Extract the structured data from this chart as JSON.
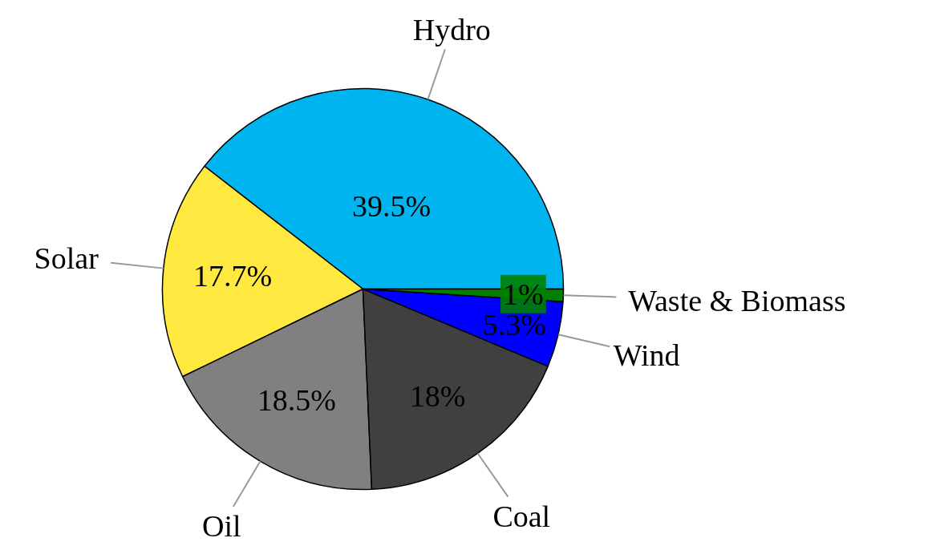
{
  "chart_data": {
    "type": "pie",
    "categories": [
      "Hydro",
      "Solar",
      "Oil",
      "Coal",
      "Wind",
      "Waste & Biomass"
    ],
    "values": [
      39.5,
      17.7,
      18.5,
      18,
      5.3,
      1
    ],
    "colors": [
      "#00b5ef",
      "#ffe840",
      "#808080",
      "#404040",
      "#0000ff",
      "#008000"
    ],
    "value_labels": [
      "39.5%",
      "17.7%",
      "18.5%",
      "18%",
      "5.3%",
      "1%"
    ]
  }
}
